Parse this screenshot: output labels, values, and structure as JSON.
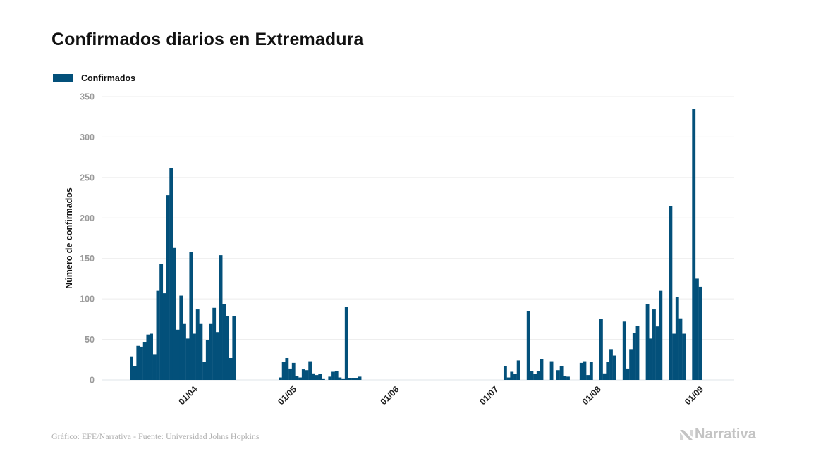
{
  "header": {
    "title": "Confirmados diarios en Extremadura"
  },
  "legend": {
    "items": [
      {
        "label": "Confirmados",
        "color": "#03507a"
      }
    ]
  },
  "footer": {
    "credit": "Gráfico: EFE/Narrativa - Fuente: Universidad Johns Hopkins"
  },
  "brand": {
    "name": "Narrativa",
    "icon": "narrativa-logo-icon"
  },
  "chart_data": {
    "type": "bar",
    "title": "Confirmados diarios en Extremadura",
    "xlabel": "",
    "ylabel": "Número de confirmados",
    "ylim": [
      0,
      350
    ],
    "yticks": [
      0,
      50,
      100,
      150,
      200,
      250,
      300,
      350
    ],
    "grid": true,
    "legend_position": "top-left",
    "start_date": "13/03",
    "x_tick_labels": [
      {
        "label": "01/04",
        "day_index": 19
      },
      {
        "label": "01/05",
        "day_index": 49
      },
      {
        "label": "01/06",
        "day_index": 80
      },
      {
        "label": "01/07",
        "day_index": 110
      },
      {
        "label": "01/08",
        "day_index": 141
      },
      {
        "label": "01/09",
        "day_index": 172
      }
    ],
    "series": [
      {
        "name": "Confirmados",
        "color": "#03507a",
        "values": [
          29,
          17,
          42,
          41,
          47,
          56,
          57,
          31,
          110,
          143,
          107,
          228,
          262,
          163,
          62,
          104,
          69,
          51,
          158,
          57,
          87,
          69,
          22,
          49,
          69,
          89,
          59,
          154,
          94,
          79,
          27,
          79,
          0,
          0,
          0,
          0,
          0,
          0,
          0,
          0,
          0,
          0,
          0,
          0,
          0,
          3,
          22,
          27,
          14,
          21,
          5,
          3,
          13,
          12,
          23,
          8,
          6,
          7,
          1,
          0,
          4,
          10,
          11,
          3,
          1,
          90,
          2,
          2,
          2,
          4,
          0,
          0,
          0,
          0,
          0,
          0,
          0,
          0,
          0,
          0,
          0,
          0,
          0,
          0,
          0,
          0,
          0,
          0,
          0,
          0,
          0,
          0,
          0,
          0,
          0,
          0,
          0,
          0,
          0,
          0,
          0,
          0,
          0,
          0,
          0,
          0,
          0,
          0,
          0,
          0,
          0,
          0,
          0,
          17,
          3,
          10,
          7,
          24,
          0,
          0,
          85,
          11,
          7,
          11,
          26,
          0,
          0,
          23,
          0,
          12,
          17,
          5,
          4,
          0,
          0,
          0,
          21,
          23,
          6,
          22,
          0,
          0,
          75,
          8,
          22,
          38,
          30,
          0,
          0,
          72,
          14,
          38,
          58,
          67,
          0,
          0,
          94,
          51,
          87,
          66,
          110,
          0,
          0,
          215,
          57,
          102,
          76,
          57,
          0,
          0,
          335,
          125,
          115
        ]
      }
    ]
  }
}
